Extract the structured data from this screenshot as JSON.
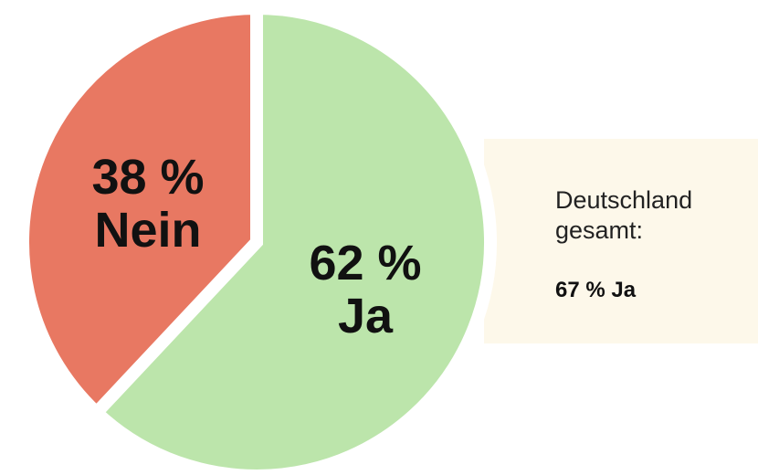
{
  "chart_data": {
    "type": "pie",
    "categories": [
      "Ja",
      "Nein"
    ],
    "values": [
      62,
      38
    ],
    "value_labels": [
      "62 %",
      "38 %"
    ],
    "colors": [
      "#bce5ab",
      "#e87862"
    ],
    "annotation": {
      "text": "Deutschland gesamt:",
      "value_label": "67 % Ja"
    }
  }
}
